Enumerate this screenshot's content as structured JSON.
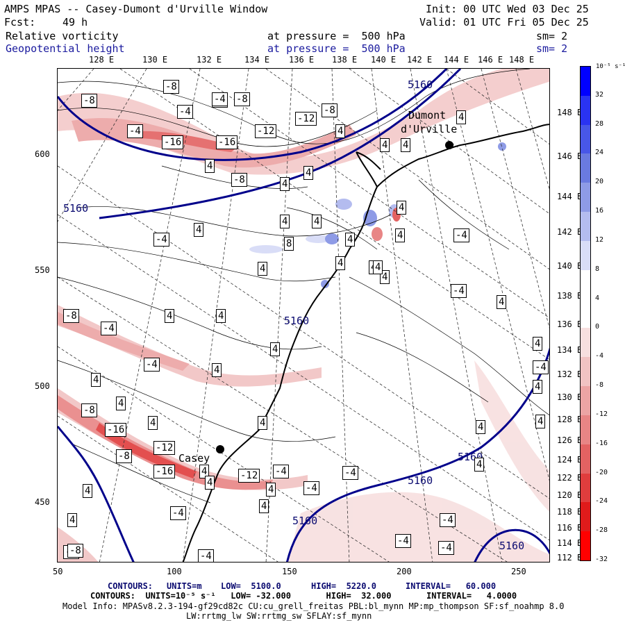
{
  "header": {
    "title": "AMPS MPAS -- Casey-Dumont d'Urville Window",
    "init": "Init: 00 UTC Wed 03 Dec 25",
    "fcst_label": "Fcst:",
    "fcst_value": "49 h",
    "valid": "Valid: 01 UTC Fri 05 Dec 25",
    "field1_name": "Relative vorticity",
    "field1_level": "at pressure =  500 hPa",
    "field1_smooth": "sm= 2",
    "field2_name": "Geopotential height",
    "field2_level": "at pressure =  500 hPa",
    "field2_smooth": "sm= 2"
  },
  "top_lon_labels": [
    "128 E",
    "130 E",
    "132 E",
    "134 E",
    "136 E",
    "138 E",
    "140 E",
    "142 E",
    "144 E",
    "146 E",
    "148 E"
  ],
  "right_lon_labels": [
    "148 E",
    "146 E",
    "144 E",
    "142 E",
    "140 E",
    "138 E",
    "136 E",
    "134 E",
    "132 E",
    "130 E",
    "128 E",
    "126 E",
    "124 E",
    "122 E",
    "120 E",
    "118 E",
    "116 E",
    "114 E",
    "112 E"
  ],
  "x_axis_ticks": [
    "50",
    "100",
    "150",
    "200",
    "250"
  ],
  "y_axis_ticks": [
    "600",
    "550",
    "500",
    "450"
  ],
  "map_labels": {
    "station_dumont_line1": "Dumont",
    "station_dumont_line2": "d'Urville",
    "station_casey": "Casey",
    "height_contours": [
      "5160",
      "5160",
      "5160",
      "5160",
      "5160",
      "5160",
      "5160"
    ],
    "vort_boxes": [
      "-8",
      "-8",
      "-8",
      "-4",
      "-8",
      "-4",
      "-12",
      "-8",
      "-16",
      "-16",
      "-12",
      "-4",
      "-4",
      "4",
      "4",
      "4",
      "4",
      "4",
      "4",
      "-4",
      "8",
      "4",
      "4",
      "4",
      "4",
      "4",
      "4",
      "4",
      "-8",
      "-4",
      "-4",
      "4",
      "4",
      "4",
      "4",
      "4",
      "4",
      "4",
      "4",
      "4",
      "-8",
      "-16",
      "-12",
      "-8",
      "-16",
      "4",
      "-12",
      "-4",
      "4",
      "-4",
      "-4",
      "4",
      "-4",
      "-4",
      "-4",
      "-4",
      "4",
      "-4",
      "4",
      "4",
      "4",
      "4",
      "-4",
      "-4",
      "-4",
      "4",
      "4",
      "4",
      "4",
      "4",
      "4",
      "-8",
      "-8",
      "4",
      "4"
    ]
  },
  "colorbar": {
    "unit_label": "10⁻⁵ s⁻¹",
    "labels": [
      "32",
      "28",
      "24",
      "20",
      "16",
      "12",
      "8",
      "4",
      "0",
      "-4",
      "-8",
      "-12",
      "-16",
      "-20",
      "-24",
      "-28",
      "-32"
    ],
    "colors": [
      "#0000ff",
      "#2a33f2",
      "#4857e8",
      "#6a7ae0",
      "#8e9be6",
      "#b4bcef",
      "#d9ddf7",
      "#ffffff",
      "#ffffff",
      "#f7dfdf",
      "#f1c3c3",
      "#eca4a4",
      "#e88585",
      "#e36262",
      "#e03d3d",
      "#e01b1b",
      "#ff0000"
    ]
  },
  "footer": {
    "line1_contours": "CONTOURS:",
    "line1_units": "UNITS=m",
    "line1_low": "LOW=  5100.0",
    "line1_high": "HIGH=  5220.0",
    "line1_interval": "INTERVAL=   60.000",
    "line2": "CONTOURS:  UNITS=10⁻⁵ s⁻¹   LOW= -32.000       HIGH=  32.000       INTERVAL=   4.0000",
    "line3": "Model Info: MPASv8.2.3-194-gf29cd82c CU:cu_grell_freitas PBL:bl_mynn MP:mp_thompson SF:sf_noahmp 8.0",
    "line4": "LW:rrtmg_lw SW:rrtmg_sw SFLAY:sf_mynn"
  }
}
